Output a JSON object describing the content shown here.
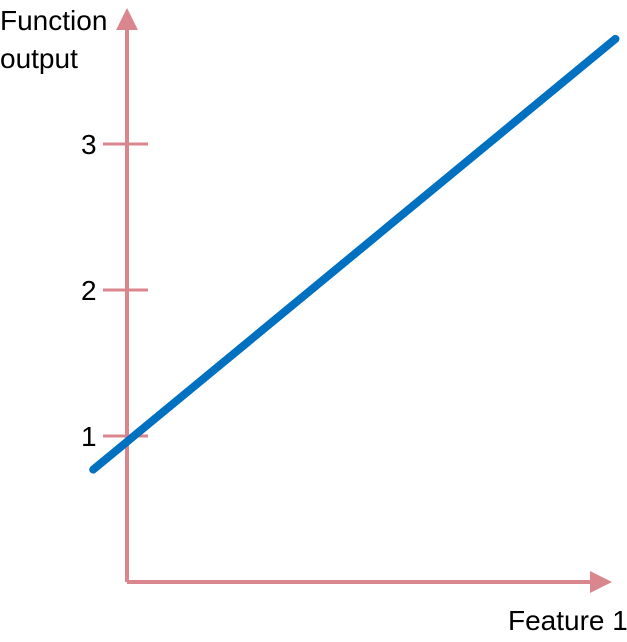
{
  "chart_data": {
    "type": "line",
    "title": "",
    "xlabel": "Feature 1",
    "ylabel_lines": [
      "Function",
      "output"
    ],
    "y_ticks": [
      1,
      2,
      3
    ],
    "series": [
      {
        "x": [
          -0.33,
          4.77
        ],
        "y": [
          0.77,
          3.72
        ]
      }
    ],
    "xlim": [
      -0.33,
      5.0
    ],
    "ylim": [
      0.0,
      4.0
    ],
    "grid": false,
    "legend": "none",
    "colors": {
      "line": "#0070C0",
      "axis": "#D9868E",
      "text": "#000000"
    }
  }
}
